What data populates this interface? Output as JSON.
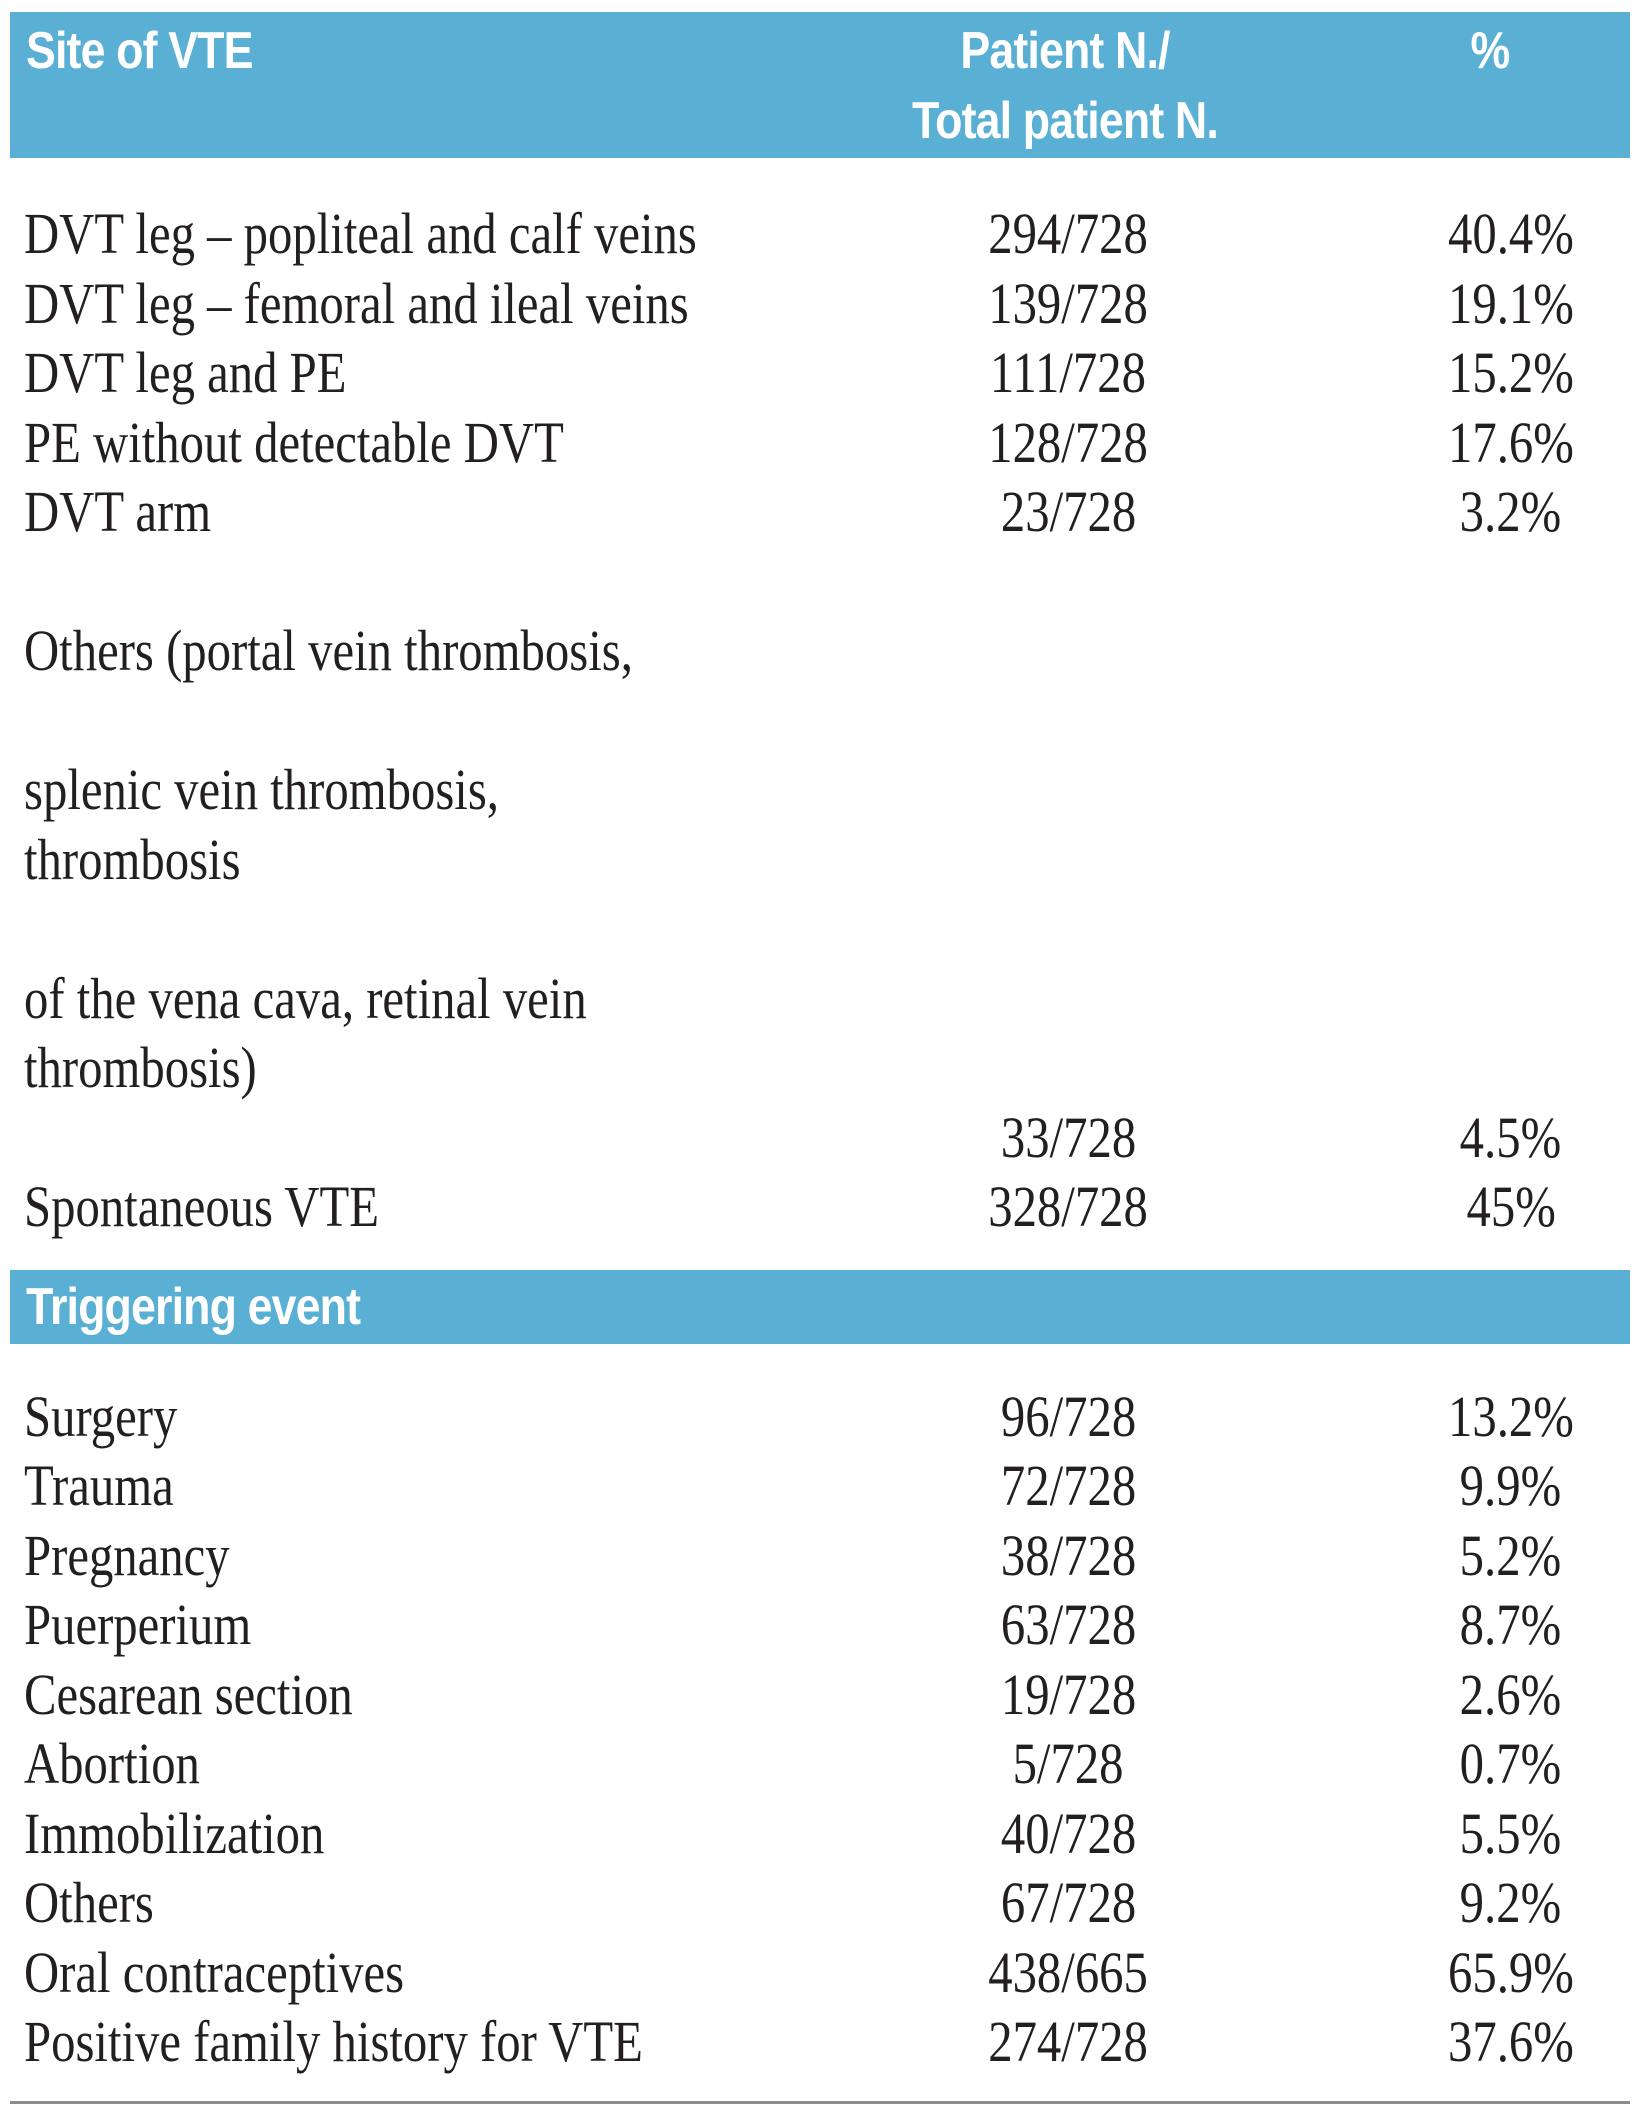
{
  "header": {
    "site_label": "Site of VTE",
    "patient_label_line1": "Patient N./",
    "patient_label_line2": "Total patient N.",
    "percent_label": "%"
  },
  "site_rows": [
    {
      "label": "DVT leg – popliteal and calf veins",
      "n": "294/728",
      "pct": "40.4%"
    },
    {
      "label": "DVT leg – femoral and ileal veins",
      "n": "139/728",
      "pct": "19.1%"
    },
    {
      "label": "DVT leg and PE",
      "n": "111/728",
      "pct": "15.2%"
    },
    {
      "label": "PE without detectable DVT",
      "n": "128/728",
      "pct": "17.6%"
    },
    {
      "label": "DVT arm",
      "n": "23/728",
      "pct": "3.2%"
    },
    {
      "label_lines": [
        "Others (portal vein thrombosis,",
        "splenic vein thrombosis, thrombosis",
        "of the vena cava, retinal vein thrombosis)"
      ],
      "n": "33/728",
      "pct": "4.5%"
    },
    {
      "label": "Spontaneous VTE",
      "n": "328/728",
      "pct": "45%"
    }
  ],
  "trigger_header": {
    "label": "Triggering event"
  },
  "trigger_rows": [
    {
      "label": "Surgery",
      "n": "96/728",
      "pct": "13.2%"
    },
    {
      "label": "Trauma",
      "n": "72/728",
      "pct": "9.9%"
    },
    {
      "label": "Pregnancy",
      "n": "38/728",
      "pct": "5.2%"
    },
    {
      "label": "Puerperium",
      "n": "63/728",
      "pct": "8.7%"
    },
    {
      "label": "Cesarean section",
      "n": "19/728",
      "pct": "2.6%"
    },
    {
      "label": "Abortion",
      "n": "5/728",
      "pct": "0.7%"
    },
    {
      "label": "Immobilization",
      "n": "40/728",
      "pct": "5.5%"
    },
    {
      "label": "Others",
      "n": "67/728",
      "pct": "9.2%"
    },
    {
      "label": "Oral contraceptives",
      "n": "438/665",
      "pct": "65.9%"
    },
    {
      "label": "Positive family history for VTE",
      "n": "274/728",
      "pct": "37.6%"
    }
  ]
}
